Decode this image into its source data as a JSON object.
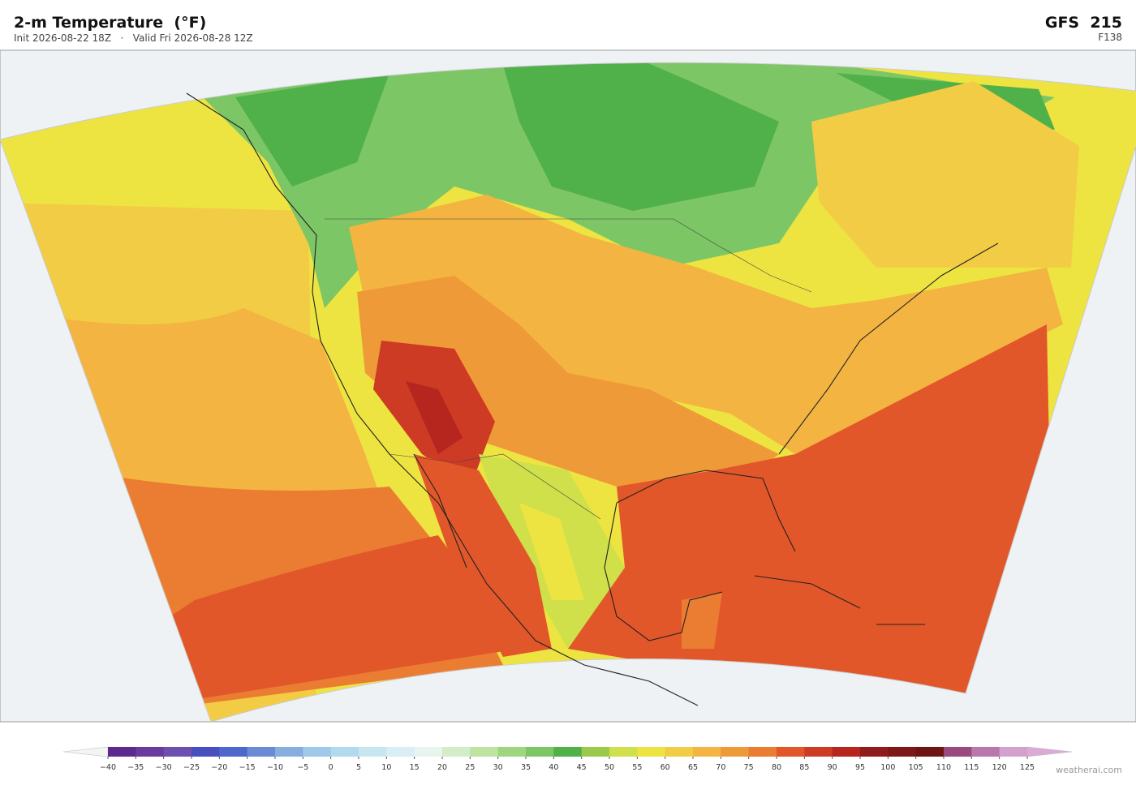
{
  "header": {
    "title": "2-m Temperature  (°F)",
    "subtitle": "Init 2026-08-22 18Z   ·   Valid Fri 2026-08-28 12Z",
    "model": "GFS  215",
    "forecast_hour": "F138"
  },
  "colorbar": {
    "labels": [
      "−40",
      "−35",
      "−30",
      "−25",
      "−20",
      "−15",
      "−10",
      "−5",
      "0",
      "5",
      "10",
      "15",
      "20",
      "25",
      "30",
      "35",
      "40",
      "45",
      "50",
      "55",
      "60",
      "65",
      "70",
      "75",
      "80",
      "85",
      "90",
      "95",
      "100",
      "105",
      "110",
      "115",
      "120",
      "125"
    ],
    "colors": [
      "#5b2a8c",
      "#6a3a9e",
      "#6e4fb0",
      "#4a4fc0",
      "#4f66cc",
      "#6b8ad6",
      "#88aee0",
      "#9ec9e8",
      "#b3d9ee",
      "#c6e6f2",
      "#d9eff5",
      "#e6f5ee",
      "#d4edc8",
      "#bfe3a0",
      "#9fd57f",
      "#7cc665",
      "#50b04a",
      "#9bc94a",
      "#cfe04a",
      "#ede441",
      "#f3cc45",
      "#f3b441",
      "#ef9a38",
      "#ea7d32",
      "#e2572a",
      "#cd3b25",
      "#b6261e",
      "#8f1c1c",
      "#7e1818",
      "#6e1414",
      "#9a4a7c",
      "#b877ad",
      "#d3a2cc"
    ],
    "under_color": "#f4f4f4",
    "over_color": "#dcaad6"
  },
  "footer": {
    "credit": "weatherai.com"
  }
}
